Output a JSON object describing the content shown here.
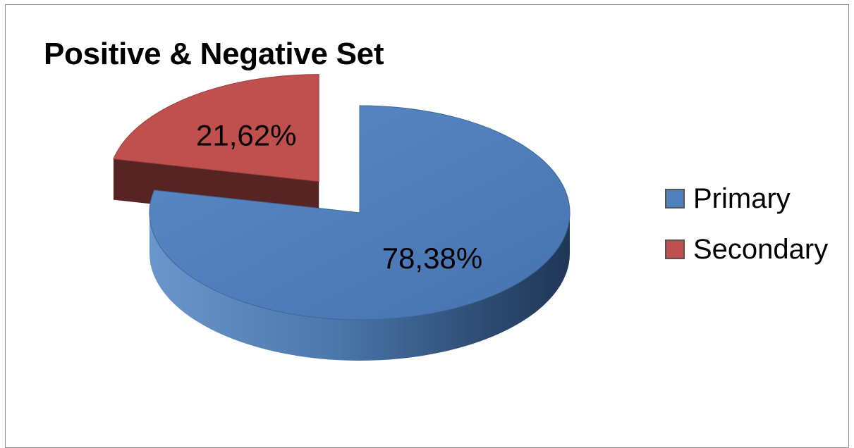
{
  "chart_data": {
    "type": "pie",
    "title": "Positive & Negative Set",
    "categories": [
      "Primary",
      "Secondary"
    ],
    "values": [
      78.38,
      21.62
    ],
    "data_labels": [
      "78,38%",
      "21,62%"
    ],
    "colors": [
      "#4f81bd",
      "#c0504d"
    ],
    "exploded": [
      "Secondary"
    ],
    "style": "3d",
    "legend_position": "right"
  }
}
